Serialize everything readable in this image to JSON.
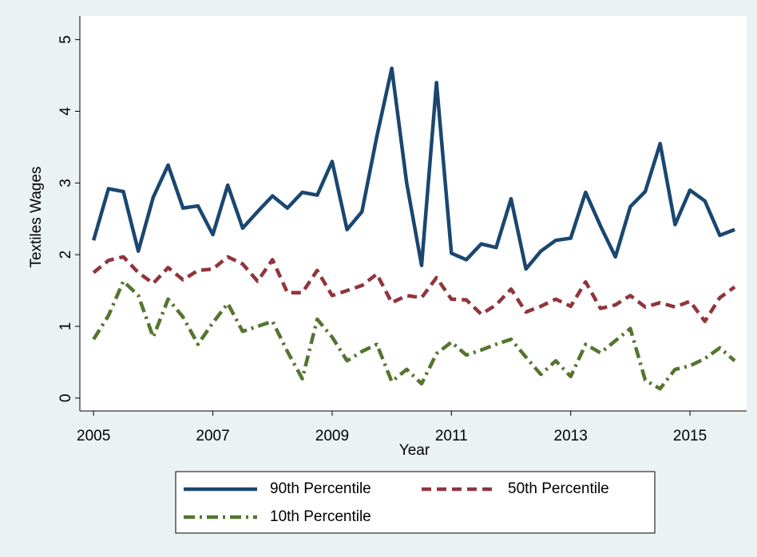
{
  "chart_data": {
    "type": "line",
    "x_label": "Year",
    "y_label": "Textiles Wages",
    "x": [
      2005,
      2005.25,
      2005.5,
      2005.75,
      2006,
      2006.25,
      2006.5,
      2006.75,
      2007,
      2007.25,
      2007.5,
      2007.75,
      2008,
      2008.25,
      2008.5,
      2008.75,
      2009,
      2009.25,
      2009.5,
      2009.75,
      2010,
      2010.25,
      2010.5,
      2010.75,
      2011,
      2011.25,
      2011.5,
      2011.75,
      2012,
      2012.25,
      2012.5,
      2012.75,
      2013,
      2013.25,
      2013.5,
      2013.75,
      2014,
      2014.25,
      2014.5,
      2014.75,
      2015,
      2015.25,
      2015.5,
      2015.75
    ],
    "series": [
      {
        "name": "90th Percentile",
        "color": "#1a476f",
        "dash": "solid",
        "values": [
          2.2,
          2.92,
          2.88,
          2.05,
          2.8,
          3.25,
          2.65,
          2.68,
          2.28,
          2.97,
          2.37,
          2.6,
          2.82,
          2.65,
          2.87,
          2.83,
          3.3,
          2.35,
          2.6,
          3.65,
          4.6,
          3.0,
          1.85,
          4.4,
          2.02,
          1.93,
          2.15,
          2.1,
          2.78,
          1.8,
          2.05,
          2.2,
          2.23,
          2.87,
          2.4,
          1.97,
          2.67,
          2.88,
          3.55,
          2.42,
          2.9,
          2.75,
          2.27,
          2.35
        ]
      },
      {
        "name": "50th Percentile",
        "color": "#90353b",
        "dash": "dash",
        "values": [
          1.75,
          1.92,
          1.97,
          1.75,
          1.6,
          1.82,
          1.65,
          1.78,
          1.8,
          1.97,
          1.87,
          1.63,
          1.93,
          1.47,
          1.47,
          1.78,
          1.43,
          1.5,
          1.57,
          1.73,
          1.33,
          1.43,
          1.4,
          1.68,
          1.38,
          1.37,
          1.17,
          1.3,
          1.52,
          1.2,
          1.28,
          1.38,
          1.28,
          1.62,
          1.25,
          1.3,
          1.43,
          1.27,
          1.33,
          1.27,
          1.35,
          1.07,
          1.4,
          1.55
        ]
      },
      {
        "name": "10th Percentile",
        "color": "#55752f",
        "dash": "dashdot",
        "values": [
          0.82,
          1.15,
          1.63,
          1.43,
          0.85,
          1.38,
          1.13,
          0.75,
          1.05,
          1.32,
          0.93,
          1.0,
          1.07,
          0.65,
          0.27,
          1.1,
          0.85,
          0.52,
          0.65,
          0.75,
          0.23,
          0.4,
          0.2,
          0.62,
          0.78,
          0.6,
          0.67,
          0.75,
          0.82,
          0.57,
          0.33,
          0.52,
          0.3,
          0.75,
          0.63,
          0.8,
          0.97,
          0.25,
          0.13,
          0.4,
          0.45,
          0.55,
          0.7,
          0.52
        ]
      }
    ],
    "xlim": [
      2004.77,
      2015.95
    ],
    "xticks": [
      2005,
      2007,
      2009,
      2011,
      2013,
      2015
    ],
    "ylim": [
      -0.18,
      5.33
    ],
    "yticks": [
      0,
      1,
      2,
      3,
      4,
      5
    ]
  }
}
